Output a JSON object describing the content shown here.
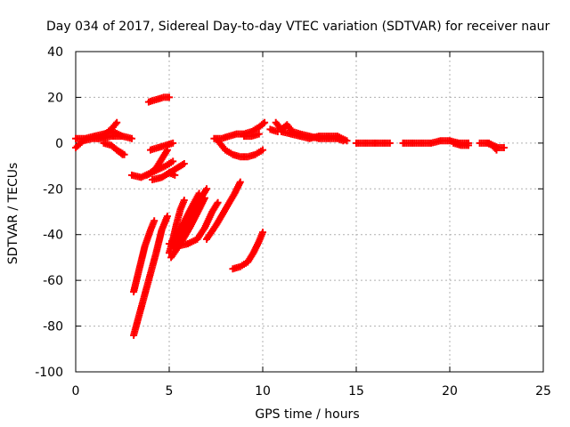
{
  "chart_data": {
    "type": "scatter",
    "title": "Day 034 of 2017, Sidereal Day-to-day VTEC variation (SDTVAR) for receiver naur",
    "xlabel": "GPS time / hours",
    "ylabel": "SDTVAR / TECUs",
    "xlim": [
      0,
      25
    ],
    "ylim": [
      -100,
      40
    ],
    "x_ticks": [
      0,
      5,
      10,
      15,
      20,
      25
    ],
    "y_ticks": [
      -100,
      -80,
      -60,
      -40,
      -20,
      0,
      20,
      40
    ],
    "x_tick_labels": [
      "0",
      "5",
      "10",
      "15",
      "20",
      "25"
    ],
    "y_tick_labels": [
      "-100",
      "-80",
      "-60",
      "-40",
      "-20",
      "0",
      "20",
      "40"
    ],
    "grid": true,
    "marker": "+",
    "color": "#ff0000",
    "series": [
      {
        "points": [
          [
            0.0,
            2
          ],
          [
            0.5,
            2
          ],
          [
            1.0,
            3
          ],
          [
            1.5,
            4
          ],
          [
            2.0,
            5
          ],
          [
            2.5,
            3
          ],
          [
            3.0,
            2
          ]
        ]
      },
      {
        "points": [
          [
            0.0,
            -2
          ],
          [
            0.4,
            1
          ],
          [
            0.9,
            2
          ],
          [
            1.4,
            2
          ],
          [
            1.9,
            3
          ],
          [
            2.4,
            3
          ]
        ]
      },
      {
        "points": [
          [
            1.2,
            2
          ],
          [
            1.6,
            4
          ],
          [
            2.0,
            7
          ],
          [
            2.2,
            9
          ]
        ]
      },
      {
        "points": [
          [
            1.5,
            0
          ],
          [
            1.9,
            -1
          ],
          [
            2.2,
            -3
          ],
          [
            2.5,
            -5
          ]
        ]
      },
      {
        "points": [
          [
            2.2,
            -3
          ],
          [
            2.6,
            -5
          ]
        ]
      },
      {
        "points": [
          [
            3.0,
            -14
          ],
          [
            3.5,
            -15
          ],
          [
            4.0,
            -13
          ],
          [
            4.3,
            -11
          ],
          [
            4.6,
            -7
          ],
          [
            4.9,
            -3
          ]
        ]
      },
      {
        "points": [
          [
            4.0,
            -3
          ],
          [
            4.4,
            -2
          ],
          [
            4.8,
            -1
          ],
          [
            5.2,
            0
          ]
        ]
      },
      {
        "points": [
          [
            3.8,
            -14
          ],
          [
            4.3,
            -12
          ],
          [
            4.8,
            -10
          ],
          [
            5.2,
            -8
          ]
        ]
      },
      {
        "points": [
          [
            4.1,
            -16
          ],
          [
            4.6,
            -15
          ],
          [
            5.2,
            -12
          ],
          [
            5.8,
            -9
          ]
        ]
      },
      {
        "points": [
          [
            3.9,
            18
          ],
          [
            4.3,
            19
          ],
          [
            4.7,
            20
          ],
          [
            5.0,
            20
          ]
        ]
      },
      {
        "points": [
          [
            5.0,
            -13
          ],
          [
            5.3,
            -14
          ]
        ]
      },
      {
        "points": [
          [
            3.1,
            -65
          ],
          [
            3.4,
            -55
          ],
          [
            3.7,
            -45
          ],
          [
            4.0,
            -38
          ],
          [
            4.2,
            -34
          ]
        ]
      },
      {
        "points": [
          [
            3.1,
            -84
          ],
          [
            3.5,
            -72
          ],
          [
            3.9,
            -60
          ],
          [
            4.3,
            -48
          ],
          [
            4.6,
            -38
          ],
          [
            4.9,
            -32
          ]
        ]
      },
      {
        "points": [
          [
            5.0,
            -48
          ],
          [
            5.2,
            -42
          ],
          [
            5.4,
            -35
          ],
          [
            5.6,
            -29
          ],
          [
            5.8,
            -25
          ]
        ]
      },
      {
        "points": [
          [
            5.0,
            -44
          ],
          [
            5.5,
            -45
          ],
          [
            6.0,
            -44
          ],
          [
            6.5,
            -42
          ],
          [
            6.9,
            -37
          ],
          [
            7.3,
            -30
          ],
          [
            7.6,
            -26
          ]
        ]
      },
      {
        "points": [
          [
            5.2,
            -43
          ],
          [
            5.7,
            -36
          ],
          [
            6.2,
            -28
          ],
          [
            6.6,
            -22
          ]
        ]
      },
      {
        "points": [
          [
            5.3,
            -46
          ],
          [
            5.8,
            -38
          ],
          [
            6.3,
            -30
          ],
          [
            6.7,
            -24
          ],
          [
            7.0,
            -20
          ]
        ]
      },
      {
        "points": [
          [
            5.1,
            -50
          ],
          [
            5.6,
            -44
          ],
          [
            6.1,
            -37
          ],
          [
            6.6,
            -29
          ],
          [
            6.9,
            -24
          ]
        ]
      },
      {
        "points": [
          [
            8.4,
            -55
          ],
          [
            8.8,
            -54
          ],
          [
            9.2,
            -52
          ],
          [
            9.5,
            -48
          ],
          [
            9.8,
            -43
          ],
          [
            10.0,
            -39
          ]
        ]
      },
      {
        "points": [
          [
            7.0,
            -42
          ],
          [
            7.5,
            -36
          ],
          [
            8.0,
            -29
          ],
          [
            8.5,
            -22
          ],
          [
            8.8,
            -17
          ]
        ]
      },
      {
        "points": [
          [
            7.4,
            2
          ],
          [
            7.8,
            2
          ],
          [
            8.2,
            3
          ],
          [
            8.6,
            4
          ],
          [
            9.0,
            4
          ],
          [
            9.4,
            5
          ],
          [
            9.8,
            7
          ],
          [
            10.1,
            9
          ]
        ]
      },
      {
        "points": [
          [
            7.6,
            1
          ],
          [
            8.0,
            -3
          ],
          [
            8.4,
            -5
          ],
          [
            8.8,
            -6
          ],
          [
            9.2,
            -6
          ],
          [
            9.6,
            -5
          ],
          [
            10.0,
            -3
          ]
        ]
      },
      {
        "points": [
          [
            9.0,
            3
          ],
          [
            9.4,
            3
          ],
          [
            9.8,
            4
          ]
        ]
      },
      {
        "points": [
          [
            10.7,
            9
          ],
          [
            11.0,
            6
          ],
          [
            11.3,
            8
          ],
          [
            11.6,
            5
          ],
          [
            12.0,
            4
          ],
          [
            12.5,
            3
          ],
          [
            13.0,
            2
          ],
          [
            13.5,
            2
          ],
          [
            14.0,
            2
          ],
          [
            14.3,
            1
          ]
        ]
      },
      {
        "points": [
          [
            11.0,
            5
          ],
          [
            11.5,
            4
          ],
          [
            12.0,
            3
          ],
          [
            12.5,
            2
          ],
          [
            13.0,
            3
          ],
          [
            13.5,
            3
          ],
          [
            14.0,
            3
          ],
          [
            14.5,
            1
          ]
        ]
      },
      {
        "points": [
          [
            10.4,
            6
          ],
          [
            10.8,
            5
          ]
        ]
      },
      {
        "points": [
          [
            15.0,
            0
          ],
          [
            15.5,
            0
          ],
          [
            16.0,
            0
          ],
          [
            16.5,
            0
          ],
          [
            16.8,
            0
          ]
        ]
      },
      {
        "points": [
          [
            17.5,
            0
          ],
          [
            18.0,
            0
          ],
          [
            18.5,
            0
          ],
          [
            19.0,
            0
          ],
          [
            19.5,
            1
          ],
          [
            20.0,
            1
          ],
          [
            20.5,
            0
          ],
          [
            21.0,
            0
          ]
        ]
      },
      {
        "points": [
          [
            20.2,
            0
          ],
          [
            20.6,
            -1
          ],
          [
            21.0,
            -1
          ]
        ]
      },
      {
        "points": [
          [
            21.6,
            0
          ],
          [
            22.0,
            0
          ],
          [
            22.3,
            -1
          ],
          [
            22.6,
            -2
          ],
          [
            22.9,
            -2
          ]
        ]
      },
      {
        "points": [
          [
            22.1,
            0
          ],
          [
            22.3,
            -1
          ],
          [
            22.5,
            -3
          ]
        ]
      }
    ]
  }
}
